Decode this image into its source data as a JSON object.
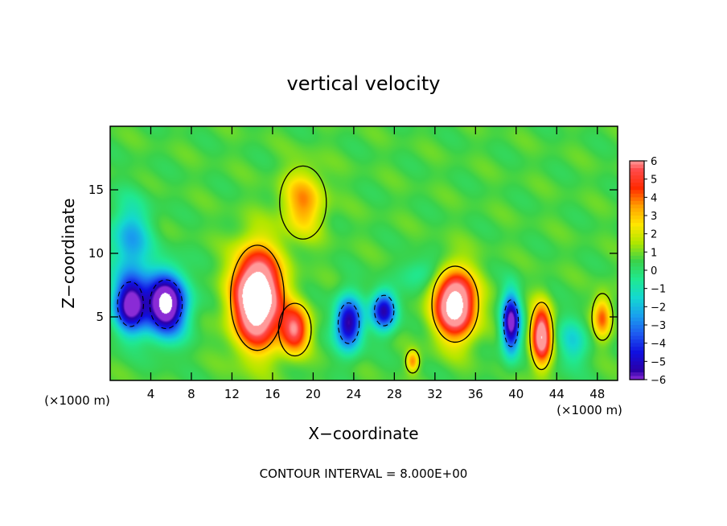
{
  "chart_data": {
    "type": "heatmap",
    "title": "vertical velocity",
    "xlabel": "X−coordinate",
    "ylabel": "Z−coordinate",
    "x_unit_left": "(×1000 m)",
    "x_unit_right": "(×1000 m)",
    "footer": "CONTOUR INTERVAL = 8.000E+00",
    "xlim": [
      0,
      50
    ],
    "ylim": [
      0,
      20
    ],
    "x_ticks": [
      4,
      8,
      12,
      16,
      20,
      24,
      28,
      32,
      36,
      40,
      44,
      48
    ],
    "y_ticks": [
      5,
      10,
      15
    ],
    "colorbar": {
      "ticks": [
        "6",
        "5",
        "4",
        "3",
        "2",
        "1",
        "0",
        "−1",
        "−2",
        "−3",
        "−4",
        "−5",
        "−6"
      ],
      "range": [
        -6,
        6
      ],
      "colors": [
        {
          "v": -6,
          "c": "#8a2bd6"
        },
        {
          "v": -5.5,
          "c": "#2a00a8"
        },
        {
          "v": -4.5,
          "c": "#1010e0"
        },
        {
          "v": -3.5,
          "c": "#1e5af0"
        },
        {
          "v": -2.5,
          "c": "#19a0ee"
        },
        {
          "v": -1.5,
          "c": "#14d8d0"
        },
        {
          "v": -0.5,
          "c": "#20e890"
        },
        {
          "v": 0.5,
          "c": "#3ad24a"
        },
        {
          "v": 1.5,
          "c": "#b0e600"
        },
        {
          "v": 2.5,
          "c": "#ffe600"
        },
        {
          "v": 3.5,
          "c": "#ffa000"
        },
        {
          "v": 4.5,
          "c": "#ff2a00"
        },
        {
          "v": 5.5,
          "c": "#ff4a4a"
        },
        {
          "v": 6,
          "c": "#ff9a9a"
        }
      ]
    },
    "updrafts": [
      {
        "x": 14.5,
        "z": 6.5,
        "amp": 9.5,
        "sx": 2.3,
        "sz": 3.6
      },
      {
        "x": 18.2,
        "z": 4.0,
        "amp": 5.0,
        "sx": 1.4,
        "sz": 1.8
      },
      {
        "x": 34.0,
        "z": 6.0,
        "amp": 8.0,
        "sx": 2.0,
        "sz": 2.6
      },
      {
        "x": 42.5,
        "z": 3.5,
        "amp": 6.5,
        "sx": 1.0,
        "sz": 2.3
      },
      {
        "x": 48.5,
        "z": 5.0,
        "amp": 3.5,
        "sx": 0.9,
        "sz": 1.6
      },
      {
        "x": 19.0,
        "z": 14.0,
        "amp": 3.0,
        "sx": 2.0,
        "sz": 2.5
      },
      {
        "x": 29.8,
        "z": 1.5,
        "amp": 3.0,
        "sx": 0.6,
        "sz": 0.8
      }
    ],
    "downdrafts": [
      {
        "x": 2.0,
        "z": 6.0,
        "amp": 7.0,
        "sx": 1.6,
        "sz": 2.2
      },
      {
        "x": 5.5,
        "z": 6.0,
        "amp": 8.5,
        "sx": 2.0,
        "sz": 2.4
      },
      {
        "x": 23.5,
        "z": 4.5,
        "amp": 6.5,
        "sx": 1.3,
        "sz": 2.0
      },
      {
        "x": 27.0,
        "z": 5.5,
        "amp": 6.0,
        "sx": 1.2,
        "sz": 1.5
      },
      {
        "x": 39.5,
        "z": 4.5,
        "amp": 7.0,
        "sx": 0.9,
        "sz": 2.3
      },
      {
        "x": 2.0,
        "z": 11.0,
        "amp": 3.0,
        "sx": 2.0,
        "sz": 3.0
      },
      {
        "x": 45.5,
        "z": 3.0,
        "amp": 2.0,
        "sx": 1.5,
        "sz": 2.0
      },
      {
        "x": 31.0,
        "z": 8.5,
        "amp": 1.5,
        "sx": 2.0,
        "sz": 1.2
      }
    ]
  }
}
